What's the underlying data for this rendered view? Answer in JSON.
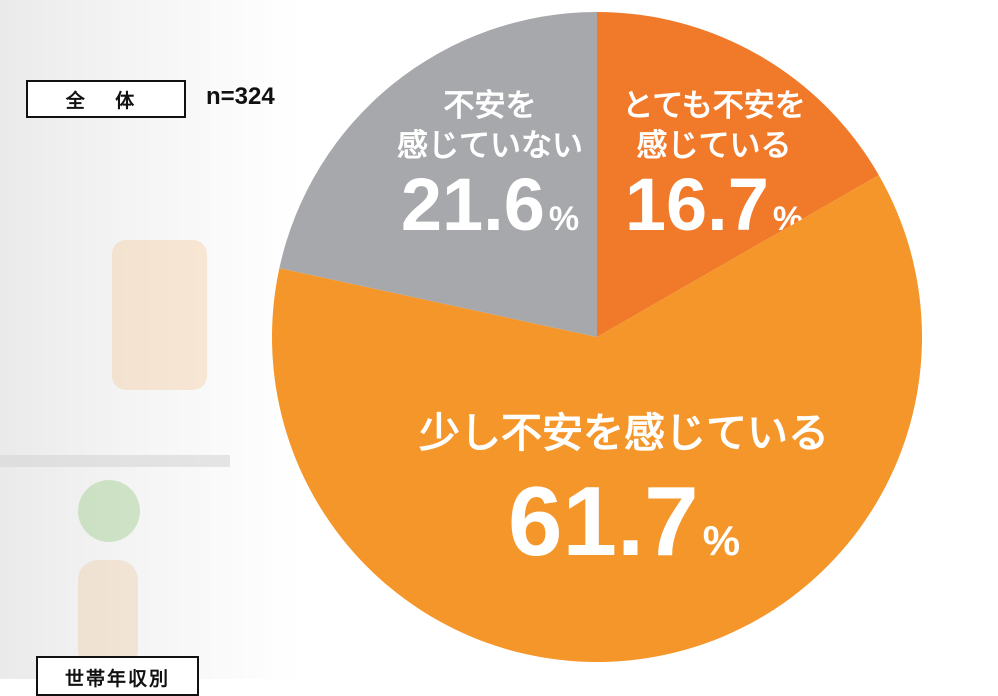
{
  "group_label": "全 体",
  "sample_size": "n=324",
  "next_section_label": "世帯年収別",
  "chart_data": {
    "type": "pie",
    "start_angle_deg": 0,
    "direction": "clockwise",
    "slices": [
      {
        "label_lines": [
          "とても不安を",
          "感じている"
        ],
        "value": 16.7,
        "value_text": "16.7",
        "unit": "%",
        "color": "#f07a2a"
      },
      {
        "label_lines": [
          "少し不安を感じている"
        ],
        "value": 61.7,
        "value_text": "61.7",
        "unit": "%",
        "color": "#f5962a"
      },
      {
        "label_lines": [
          "不安を",
          "感じていない"
        ],
        "value": 21.6,
        "value_text": "21.6",
        "unit": "%",
        "color": "#a7a8ab"
      }
    ]
  }
}
